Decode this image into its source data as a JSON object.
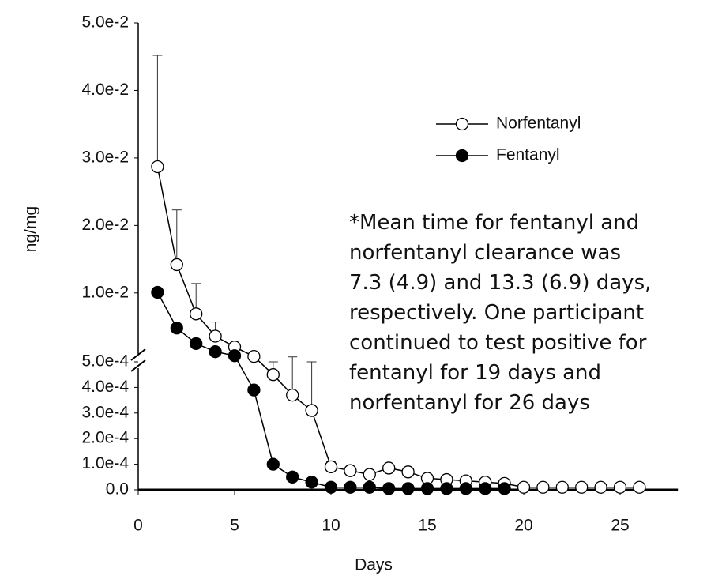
{
  "chart_data": {
    "type": "line",
    "x_label": "Days",
    "y_label": "ng/mg",
    "xlim": [
      0,
      28
    ],
    "xticks": [
      0,
      5,
      10,
      15,
      20,
      25
    ],
    "ylim": [
      0,
      0.05
    ],
    "ybreak": 0.0005,
    "yticks": [
      {
        "value": 0,
        "label": "0.0"
      },
      {
        "value": 0.0001,
        "label": "1.0e-4"
      },
      {
        "value": 0.0002,
        "label": "2.0e-4"
      },
      {
        "value": 0.0003,
        "label": "3.0e-4"
      },
      {
        "value": 0.0004,
        "label": "4.0e-4"
      },
      {
        "value": 0.0005,
        "label": "5.0e-4"
      },
      {
        "value": 0.01,
        "label": "1.0e-2"
      },
      {
        "value": 0.02,
        "label": "2.0e-2"
      },
      {
        "value": 0.03,
        "label": "3.0e-2"
      },
      {
        "value": 0.04,
        "label": "4.0e-2"
      },
      {
        "value": 0.05,
        "label": "5.0e-2"
      }
    ],
    "legend": "upper right",
    "series": [
      {
        "name": "Norfentanyl",
        "color": "#000000",
        "marker": "open",
        "x": [
          1,
          2,
          3,
          4,
          5,
          6,
          7,
          8,
          9,
          10,
          11,
          12,
          13,
          14,
          15,
          16,
          17,
          18,
          19,
          20,
          21,
          22,
          23,
          24,
          25,
          26
        ],
        "values": [
          0.0287,
          0.0142,
          0.0069,
          0.0036,
          0.002,
          0.0006,
          0.00045,
          0.00037,
          0.00031,
          9e-05,
          7.5e-05,
          6e-05,
          8.5e-05,
          7e-05,
          4.5e-05,
          4e-05,
          3.5e-05,
          3e-05,
          2.5e-05,
          1e-05,
          1e-05,
          1e-05,
          1e-05,
          1e-05,
          1e-05,
          1e-05
        ],
        "errors": [
          0.0165,
          0.0081,
          0.0045,
          0.0021,
          0.0005,
          0.0001,
          5e-05,
          0.00016,
          0.00019,
          2e-05,
          1e-05,
          1e-05,
          1e-05,
          1e-05,
          1e-05,
          1e-05,
          1e-05,
          1e-05,
          1e-05,
          null,
          null,
          null,
          null,
          null,
          null,
          null
        ]
      },
      {
        "name": "Fentanyl",
        "color": "#000000",
        "marker": "filled",
        "x": [
          1,
          2,
          3,
          4,
          5,
          6,
          7,
          8,
          9,
          10,
          11,
          12,
          13,
          14,
          15,
          16,
          17,
          18,
          19
        ],
        "values": [
          0.0101,
          0.0048,
          0.0025,
          0.0013,
          0.0007,
          0.00039,
          0.0001,
          5e-05,
          3e-05,
          1e-05,
          1e-05,
          1e-05,
          5e-06,
          5e-06,
          5e-06,
          5e-06,
          5e-06,
          5e-06,
          5e-06
        ]
      }
    ],
    "annotation": [
      "*Mean time for fentanyl and",
      "norfentanyl clearance was",
      "7.3 (4.9) and 13.3 (6.9) days,",
      "respectively. One participant",
      "continued to test positive for",
      "fentanyl for 19 days and",
      "norfentanyl for 26 days"
    ]
  }
}
